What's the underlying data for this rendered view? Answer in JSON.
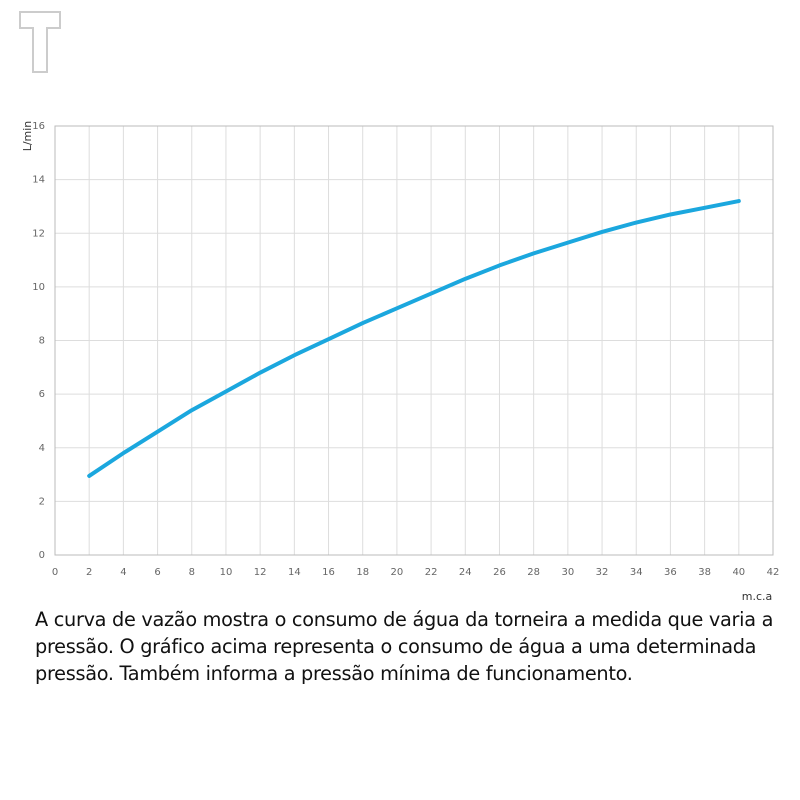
{
  "chart_data": {
    "type": "line",
    "y_label": "L/min",
    "x_label": "m.c.a",
    "x": [
      2,
      4,
      6,
      8,
      10,
      12,
      14,
      16,
      18,
      20,
      22,
      24,
      26,
      28,
      30,
      32,
      34,
      36,
      38,
      40
    ],
    "series": [
      {
        "color": "#1ba7de",
        "values": [
          2.95,
          3.8,
          4.6,
          5.4,
          6.1,
          6.8,
          7.45,
          8.05,
          8.65,
          9.2,
          9.75,
          10.3,
          10.8,
          11.25,
          11.65,
          12.05,
          12.4,
          12.7,
          12.95,
          13.2
        ]
      }
    ],
    "xlim": [
      0,
      42
    ],
    "xticks": [
      0,
      2,
      4,
      6,
      8,
      10,
      12,
      14,
      16,
      18,
      20,
      22,
      24,
      26,
      28,
      30,
      32,
      34,
      36,
      38,
      40,
      42
    ],
    "ylim": [
      0,
      16
    ],
    "yticks": [
      0,
      2,
      4,
      6,
      8,
      10,
      12,
      14,
      16
    ],
    "grid": true
  },
  "caption": [
    "A curva de vazão mostra o consumo de água da torneira a medida que varia a",
    "pressão. O gráfico acima representa o consumo de água a uma determinada",
    "pressão. Também informa a pressão mínima de funcionamento."
  ]
}
